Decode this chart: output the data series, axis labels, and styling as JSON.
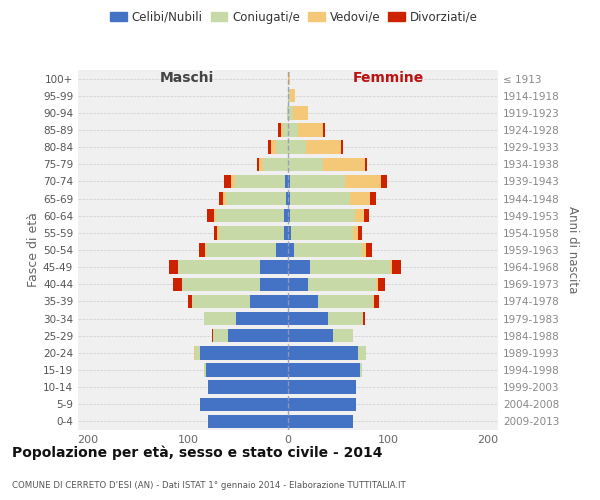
{
  "age_groups": [
    "100+",
    "95-99",
    "90-94",
    "85-89",
    "80-84",
    "75-79",
    "70-74",
    "65-69",
    "60-64",
    "55-59",
    "50-54",
    "45-49",
    "40-44",
    "35-39",
    "30-34",
    "25-29",
    "20-24",
    "15-19",
    "10-14",
    "5-9",
    "0-4"
  ],
  "birth_years": [
    "≤ 1913",
    "1914-1918",
    "1919-1923",
    "1924-1928",
    "1929-1933",
    "1934-1938",
    "1939-1943",
    "1944-1948",
    "1949-1953",
    "1954-1958",
    "1959-1963",
    "1964-1968",
    "1969-1973",
    "1974-1978",
    "1979-1983",
    "1984-1988",
    "1989-1993",
    "1994-1998",
    "1999-2003",
    "2004-2008",
    "2009-2013"
  ],
  "maschi_celibi": [
    0,
    0,
    0,
    0,
    0,
    0,
    3,
    2,
    4,
    4,
    12,
    28,
    28,
    38,
    52,
    60,
    88,
    82,
    80,
    88,
    80
  ],
  "maschi_coniugati": [
    0,
    0,
    1,
    5,
    12,
    25,
    50,
    60,
    68,
    65,
    70,
    82,
    78,
    58,
    32,
    15,
    5,
    2,
    0,
    0,
    0
  ],
  "maschi_vedovi": [
    0,
    0,
    0,
    2,
    5,
    4,
    4,
    3,
    2,
    2,
    1,
    0,
    0,
    0,
    0,
    0,
    1,
    0,
    0,
    0,
    0
  ],
  "maschi_divorziati": [
    0,
    0,
    0,
    3,
    3,
    2,
    7,
    4,
    7,
    3,
    6,
    9,
    9,
    4,
    0,
    1,
    0,
    0,
    0,
    0,
    0
  ],
  "femmine_nubili": [
    0,
    0,
    0,
    0,
    0,
    0,
    2,
    2,
    2,
    3,
    6,
    22,
    20,
    30,
    40,
    45,
    70,
    72,
    68,
    68,
    65
  ],
  "femmine_coniugate": [
    0,
    2,
    5,
    10,
    18,
    35,
    55,
    60,
    65,
    62,
    68,
    80,
    68,
    55,
    35,
    20,
    8,
    2,
    0,
    0,
    0
  ],
  "femmine_vedove": [
    2,
    5,
    15,
    25,
    35,
    42,
    36,
    20,
    9,
    5,
    4,
    2,
    2,
    1,
    0,
    0,
    0,
    0,
    0,
    0,
    0
  ],
  "femmine_divorziate": [
    0,
    0,
    0,
    2,
    2,
    2,
    6,
    6,
    5,
    4,
    6,
    9,
    7,
    5,
    2,
    0,
    0,
    0,
    0,
    0,
    0
  ],
  "color_celibi": "#4472c4",
  "color_coniugati": "#c8d9a8",
  "color_vedovi": "#f5c878",
  "color_divorziati": "#cc2200",
  "bg_plot": "#f0f0f0",
  "bg_fig": "#ffffff",
  "grid_color": "#cccccc",
  "title": "Popolazione per età, sesso e stato civile - 2014",
  "subtitle": "COMUNE DI CERRETO D'ESI (AN) - Dati ISTAT 1° gennaio 2014 - Elaborazione TUTTITALIA.IT",
  "maschi_label": "Maschi",
  "femmine_label": "Femmine",
  "ylabel_left": "Fasce di età",
  "ylabel_right": "Anni di nascita",
  "legend_labels": [
    "Celibi/Nubili",
    "Coniugati/e",
    "Vedovi/e",
    "Divorziati/e"
  ],
  "xlim": 210,
  "bar_height": 0.78
}
